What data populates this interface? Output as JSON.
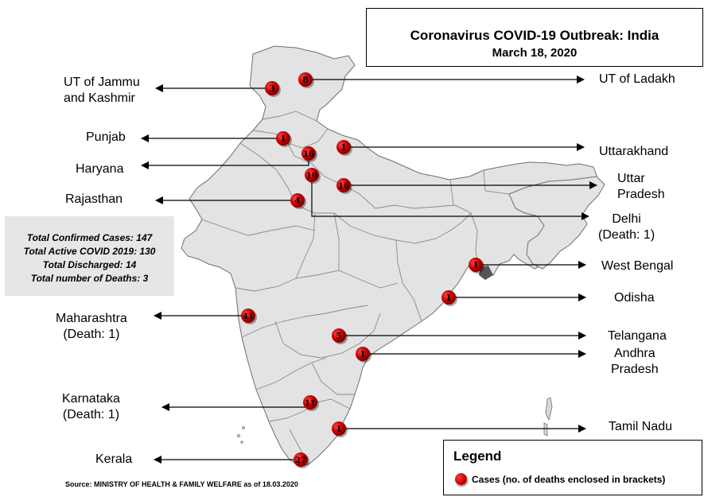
{
  "title": "Coronavirus COVID-19 Outbreak: India",
  "date": "March 18, 2020",
  "stats": [
    "Total Confirmed Cases: 147",
    "Total Active COVID 2019: 130",
    "Total Discharged: 14",
    "Total number of Deaths: 3"
  ],
  "legend": {
    "title": "Legend",
    "item": "Cases (no. of deaths enclosed in brackets)"
  },
  "source": "Source: MINISTRY OF HEALTH & FAMILY WELFARE as of 18.03.2020",
  "states": [
    {
      "label_lines": [
        "UT of Jammu",
        "and Kashmir"
      ],
      "cases": 3
    },
    {
      "label_lines": [
        "UT of Ladakh"
      ],
      "cases": 8
    },
    {
      "label_lines": [
        "Punjab"
      ],
      "cases": 1
    },
    {
      "label_lines": [
        "Haryana"
      ],
      "cases": 16
    },
    {
      "label_lines": [
        "Uttarakhand"
      ],
      "cases": 1
    },
    {
      "label_lines": [
        "Rajasthan"
      ],
      "cases": 4
    },
    {
      "label_lines": [
        "Uttar",
        "Pradesh"
      ],
      "cases": 16
    },
    {
      "label_lines": [
        "Delhi",
        "(Death: 1)"
      ],
      "cases": 10
    },
    {
      "label_lines": [
        "West Bengal"
      ],
      "cases": 1
    },
    {
      "label_lines": [
        "Odisha"
      ],
      "cases": 1
    },
    {
      "label_lines": [
        "Maharashtra",
        "(Death: 1)"
      ],
      "cases": 41
    },
    {
      "label_lines": [
        "Telangana"
      ],
      "cases": 5
    },
    {
      "label_lines": [
        "Andhra",
        "Pradesh"
      ],
      "cases": 1
    },
    {
      "label_lines": [
        "Karnataka",
        "(Death: 1)"
      ],
      "cases": 11
    },
    {
      "label_lines": [
        "Tamil Nadu"
      ],
      "cases": 1
    },
    {
      "label_lines": [
        "Kerala"
      ],
      "cases": 27
    }
  ],
  "colors": {
    "land": "#e3e3e3",
    "border": "#6e6e6e",
    "marker": "#cc0000",
    "stats_bg": "#e6e6e6"
  }
}
